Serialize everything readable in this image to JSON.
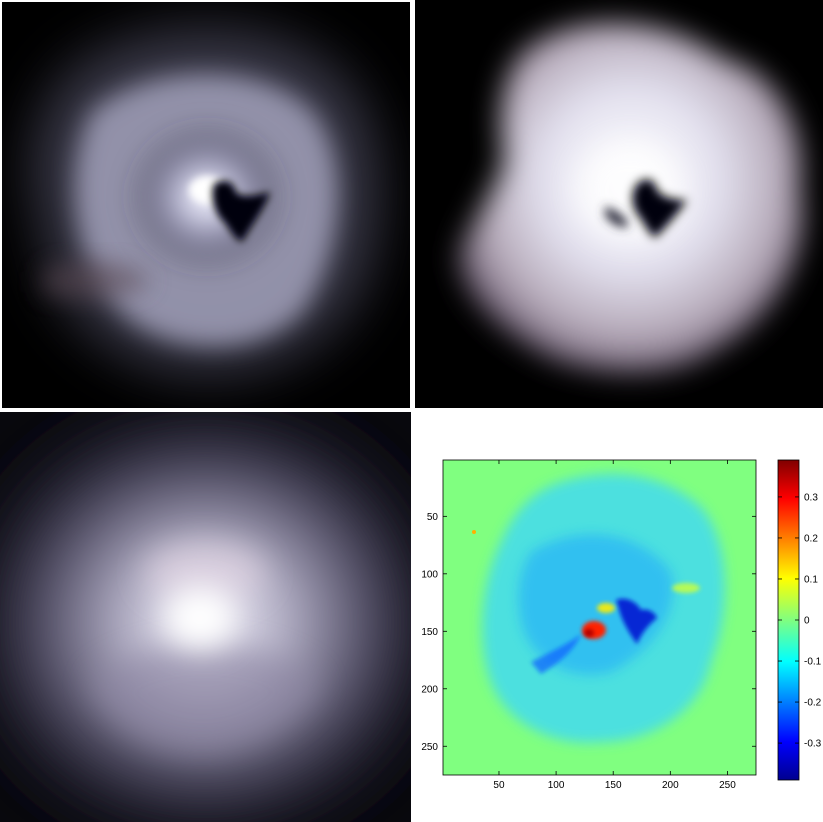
{
  "panels": [
    {
      "name": "observed-nebula-image",
      "description_kind": "photograph"
    },
    {
      "name": "reconstructed-nebula-image",
      "description_kind": "photograph"
    },
    {
      "name": "smooth-model-image",
      "description_kind": "photograph"
    },
    {
      "name": "residual-map",
      "description_kind": "heatmap"
    }
  ],
  "colors": {
    "background": "#000000",
    "nebula_glow": "#d9d9f2",
    "core": "#ffffff",
    "residual_background": "#80ff80"
  },
  "chart_data": {
    "type": "heatmap",
    "title": "",
    "xlabel": "",
    "ylabel": "",
    "xlim": [
      1,
      275
    ],
    "ylim": [
      275,
      1
    ],
    "x_ticks": [
      "50",
      "100",
      "150",
      "200",
      "250"
    ],
    "y_ticks": [
      "50",
      "100",
      "150",
      "200",
      "250"
    ],
    "colorbar": {
      "range": [
        -0.39,
        0.39
      ],
      "ticks": [
        "0.3",
        "0.2",
        "0.1",
        "0",
        "-0.1",
        "-0.2",
        "-0.3"
      ],
      "colormap": "jet"
    }
  }
}
